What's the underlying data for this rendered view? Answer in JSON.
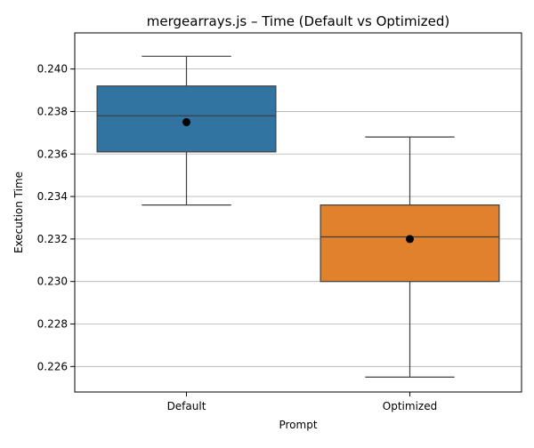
{
  "chart_data": {
    "type": "boxplot",
    "title": "mergearrays.js – Time (Default vs Optimized)",
    "xlabel": "Prompt",
    "ylabel": "Execution Time",
    "ylim": [
      0.2248,
      0.2417
    ],
    "yticks": [
      "0.226",
      "0.228",
      "0.230",
      "0.232",
      "0.234",
      "0.236",
      "0.238",
      "0.240"
    ],
    "ytick_values": [
      0.226,
      0.228,
      0.23,
      0.232,
      0.234,
      0.236,
      0.238,
      0.24
    ],
    "grid": "y",
    "categories": [
      "Default",
      "Optimized"
    ],
    "boxes": [
      {
        "category": "Default",
        "whisker_low": 0.2336,
        "q1": 0.2361,
        "median": 0.2378,
        "q3": 0.2392,
        "whisker_high": 0.2406,
        "mean": 0.2375,
        "color": "#3274a1"
      },
      {
        "category": "Optimized",
        "whisker_low": 0.2255,
        "q1": 0.23,
        "median": 0.2321,
        "q3": 0.2336,
        "whisker_high": 0.2368,
        "mean": 0.232,
        "color": "#e1812c"
      }
    ]
  }
}
